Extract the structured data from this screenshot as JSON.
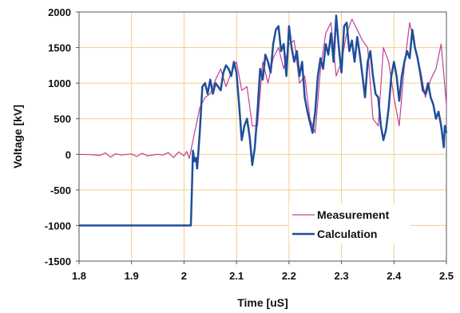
{
  "chart_data": {
    "type": "line",
    "title": "",
    "xlabel": "Time [uS]",
    "ylabel": "Voltage [kV]",
    "xlim": [
      1.8,
      2.5
    ],
    "ylim": [
      -1500,
      2000
    ],
    "x_ticks": [
      1.8,
      1.9,
      2,
      2.1,
      2.2,
      2.3,
      2.4,
      2.5
    ],
    "x_tick_labels": [
      "1.8",
      "1.9",
      "2",
      "2.1",
      "2.2",
      "2.3",
      "2.4",
      "2.5"
    ],
    "y_ticks": [
      -1500,
      -1000,
      -500,
      0,
      500,
      1000,
      1500,
      2000
    ],
    "y_tick_labels": [
      "-1500",
      "-1000",
      "-500",
      "0",
      "500",
      "1000",
      "1500",
      "2000"
    ],
    "grid": true,
    "grid_color": "#f2cf87",
    "legend_position": "bottom-right",
    "series": [
      {
        "name": "Measurement",
        "color": "#c0409a",
        "points": [
          [
            1.8,
            0
          ],
          [
            1.82,
            -5
          ],
          [
            1.84,
            -15
          ],
          [
            1.85,
            20
          ],
          [
            1.86,
            -40
          ],
          [
            1.87,
            10
          ],
          [
            1.88,
            -10
          ],
          [
            1.9,
            5
          ],
          [
            1.91,
            -30
          ],
          [
            1.92,
            15
          ],
          [
            1.93,
            -20
          ],
          [
            1.95,
            0
          ],
          [
            1.96,
            -10
          ],
          [
            1.97,
            25
          ],
          [
            1.98,
            -45
          ],
          [
            1.99,
            35
          ],
          [
            2.0,
            -20
          ],
          [
            2.005,
            40
          ],
          [
            2.01,
            -60
          ],
          [
            2.02,
            300
          ],
          [
            2.03,
            650
          ],
          [
            2.04,
            800
          ],
          [
            2.05,
            850
          ],
          [
            2.06,
            1050
          ],
          [
            2.07,
            1200
          ],
          [
            2.08,
            950
          ],
          [
            2.09,
            1150
          ],
          [
            2.1,
            1300
          ],
          [
            2.11,
            900
          ],
          [
            2.12,
            950
          ],
          [
            2.13,
            400
          ],
          [
            2.14,
            400
          ],
          [
            2.15,
            1300
          ],
          [
            2.16,
            1000
          ],
          [
            2.17,
            1350
          ],
          [
            2.18,
            1500
          ],
          [
            2.19,
            1200
          ],
          [
            2.2,
            1550
          ],
          [
            2.21,
            1600
          ],
          [
            2.22,
            1000
          ],
          [
            2.23,
            1100
          ],
          [
            2.24,
            500
          ],
          [
            2.25,
            300
          ],
          [
            2.26,
            1200
          ],
          [
            2.27,
            1700
          ],
          [
            2.28,
            1850
          ],
          [
            2.29,
            1100
          ],
          [
            2.3,
            1300
          ],
          [
            2.31,
            1700
          ],
          [
            2.32,
            1900
          ],
          [
            2.33,
            1750
          ],
          [
            2.34,
            1600
          ],
          [
            2.35,
            1500
          ],
          [
            2.36,
            500
          ],
          [
            2.37,
            400
          ],
          [
            2.38,
            1500
          ],
          [
            2.39,
            1300
          ],
          [
            2.4,
            800
          ],
          [
            2.41,
            400
          ],
          [
            2.42,
            1250
          ],
          [
            2.43,
            1850
          ],
          [
            2.44,
            1500
          ],
          [
            2.45,
            1200
          ],
          [
            2.46,
            800
          ],
          [
            2.47,
            1050
          ],
          [
            2.48,
            1200
          ],
          [
            2.49,
            1550
          ],
          [
            2.5,
            700
          ]
        ]
      },
      {
        "name": "Calculation",
        "color": "#1f4e9a",
        "points": [
          [
            1.8,
            -1000
          ],
          [
            2.013,
            -1000
          ],
          [
            2.015,
            -500
          ],
          [
            2.017,
            50
          ],
          [
            2.02,
            -100
          ],
          [
            2.023,
            -50
          ],
          [
            2.025,
            -200
          ],
          [
            2.03,
            300
          ],
          [
            2.035,
            950
          ],
          [
            2.04,
            1000
          ],
          [
            2.045,
            850
          ],
          [
            2.05,
            1050
          ],
          [
            2.055,
            850
          ],
          [
            2.06,
            1000
          ],
          [
            2.07,
            900
          ],
          [
            2.075,
            1150
          ],
          [
            2.08,
            1250
          ],
          [
            2.085,
            1200
          ],
          [
            2.09,
            1100
          ],
          [
            2.095,
            1300
          ],
          [
            2.1,
            1150
          ],
          [
            2.105,
            700
          ],
          [
            2.11,
            200
          ],
          [
            2.115,
            400
          ],
          [
            2.12,
            500
          ],
          [
            2.125,
            250
          ],
          [
            2.13,
            -150
          ],
          [
            2.135,
            100
          ],
          [
            2.14,
            600
          ],
          [
            2.145,
            1200
          ],
          [
            2.15,
            1050
          ],
          [
            2.155,
            1400
          ],
          [
            2.16,
            1300
          ],
          [
            2.165,
            1150
          ],
          [
            2.17,
            1550
          ],
          [
            2.175,
            1750
          ],
          [
            2.18,
            1800
          ],
          [
            2.185,
            1450
          ],
          [
            2.19,
            1550
          ],
          [
            2.195,
            1100
          ],
          [
            2.2,
            1800
          ],
          [
            2.205,
            1500
          ],
          [
            2.21,
            1300
          ],
          [
            2.215,
            1450
          ],
          [
            2.22,
            1100
          ],
          [
            2.225,
            1300
          ],
          [
            2.23,
            800
          ],
          [
            2.235,
            600
          ],
          [
            2.24,
            450
          ],
          [
            2.245,
            300
          ],
          [
            2.25,
            600
          ],
          [
            2.255,
            1100
          ],
          [
            2.26,
            1350
          ],
          [
            2.265,
            1200
          ],
          [
            2.27,
            1550
          ],
          [
            2.275,
            1400
          ],
          [
            2.28,
            1700
          ],
          [
            2.285,
            1300
          ],
          [
            2.29,
            1950
          ],
          [
            2.295,
            1500
          ],
          [
            2.3,
            1150
          ],
          [
            2.305,
            1800
          ],
          [
            2.31,
            1850
          ],
          [
            2.315,
            1450
          ],
          [
            2.32,
            1600
          ],
          [
            2.325,
            1300
          ],
          [
            2.33,
            1650
          ],
          [
            2.335,
            1400
          ],
          [
            2.34,
            1100
          ],
          [
            2.345,
            800
          ],
          [
            2.35,
            1300
          ],
          [
            2.355,
            1450
          ],
          [
            2.36,
            1100
          ],
          [
            2.365,
            850
          ],
          [
            2.37,
            800
          ],
          [
            2.375,
            400
          ],
          [
            2.38,
            200
          ],
          [
            2.385,
            350
          ],
          [
            2.39,
            650
          ],
          [
            2.395,
            1100
          ],
          [
            2.4,
            1300
          ],
          [
            2.405,
            1100
          ],
          [
            2.41,
            750
          ],
          [
            2.415,
            1100
          ],
          [
            2.42,
            1300
          ],
          [
            2.425,
            1450
          ],
          [
            2.43,
            1350
          ],
          [
            2.435,
            1750
          ],
          [
            2.44,
            1500
          ],
          [
            2.445,
            1350
          ],
          [
            2.45,
            1150
          ],
          [
            2.455,
            900
          ],
          [
            2.46,
            850
          ],
          [
            2.465,
            1000
          ],
          [
            2.47,
            800
          ],
          [
            2.475,
            700
          ],
          [
            2.48,
            500
          ],
          [
            2.485,
            600
          ],
          [
            2.49,
            400
          ],
          [
            2.495,
            100
          ],
          [
            2.497,
            400
          ],
          [
            2.5,
            300
          ]
        ]
      }
    ]
  }
}
